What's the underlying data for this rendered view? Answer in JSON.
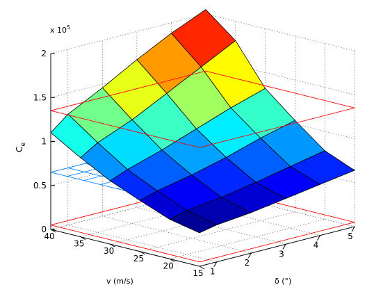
{
  "chart_data": {
    "type": "surface3d",
    "title": "",
    "xlabel": "δ (°)",
    "ylabel": "v (m/s)",
    "zlabel": "C",
    "zlabel_subscript": "e",
    "zscale_label": "x 10",
    "zscale_exponent": "5",
    "xlim": [
      0.5,
      5
    ],
    "ylim": [
      15,
      40
    ],
    "zlim": [
      0,
      200000
    ],
    "xticks": [
      "1",
      "2",
      "3",
      "4",
      "5"
    ],
    "yticks": [
      "15",
      "20",
      "25",
      "30",
      "35",
      "40"
    ],
    "zticks": [
      "0",
      "0.5",
      "1",
      "1.5",
      "2"
    ],
    "grid": true,
    "surface": {
      "delta": [
        0.5,
        1,
        2,
        3,
        4,
        5
      ],
      "v": [
        15,
        20,
        25,
        30,
        35,
        40
      ],
      "Ce": [
        [
          38000,
          42000,
          46000,
          52000,
          58000,
          64000
        ],
        [
          45000,
          50000,
          55000,
          62000,
          70000,
          78000
        ],
        [
          58000,
          64000,
          72000,
          82000,
          94000,
          104000
        ],
        [
          72000,
          80000,
          92000,
          106000,
          120000,
          132000
        ],
        [
          90000,
          102000,
          118000,
          138000,
          158000,
          178000
        ],
        [
          110000,
          126000,
          146000,
          168000,
          188000,
          205000
        ]
      ]
    },
    "planes": [
      {
        "name": "",
        "z": 65000,
        "style": "mesh",
        "color": "#0080ff"
      },
      {
        "name": "",
        "z": 135000,
        "style": "outline",
        "color": "#ff0000"
      },
      {
        "name": "",
        "z": 5000,
        "style": "outline",
        "color": "#ff0000"
      }
    ]
  }
}
